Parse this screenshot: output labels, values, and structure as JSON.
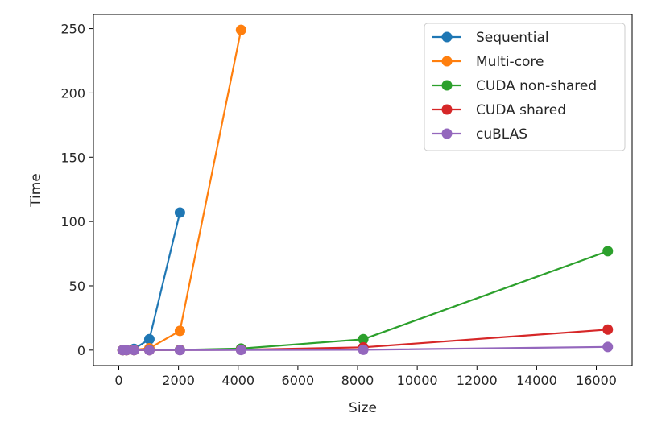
{
  "chart_data": {
    "type": "line",
    "title": "",
    "xlabel": "Size",
    "ylabel": "Time",
    "xlim": [
      -850,
      17200
    ],
    "ylim": [
      -12,
      261
    ],
    "xticks": [
      0,
      2000,
      4000,
      6000,
      8000,
      10000,
      12000,
      14000,
      16000
    ],
    "yticks": [
      0,
      50,
      100,
      150,
      200,
      250
    ],
    "grid": false,
    "legend_position": "top-right",
    "series": [
      {
        "name": "Sequential",
        "color": "#1f77b4",
        "x": [
          128,
          256,
          512,
          1024,
          2048
        ],
        "y": [
          0.0,
          0.1,
          1.0,
          8.5,
          107
        ]
      },
      {
        "name": "Multi-core",
        "color": "#ff7f0e",
        "x": [
          128,
          256,
          512,
          1024,
          2048,
          4096
        ],
        "y": [
          0.0,
          0.0,
          0.2,
          1.5,
          15,
          249
        ]
      },
      {
        "name": "CUDA non-shared",
        "color": "#2ca02c",
        "x": [
          128,
          256,
          512,
          1024,
          2048,
          4096,
          8192,
          16384
        ],
        "y": [
          0.0,
          0.0,
          0.0,
          0.1,
          0.2,
          1.2,
          8.5,
          77
        ]
      },
      {
        "name": "CUDA shared",
        "color": "#d62728",
        "x": [
          128,
          256,
          512,
          1024,
          2048,
          4096,
          8192,
          16384
        ],
        "y": [
          0.0,
          0.0,
          0.0,
          0.0,
          0.1,
          0.3,
          2.2,
          16
        ]
      },
      {
        "name": "cuBLAS",
        "color": "#9467bd",
        "x": [
          128,
          256,
          512,
          1024,
          2048,
          4096,
          8192,
          16384
        ],
        "y": [
          0.0,
          0.0,
          0.0,
          0.0,
          0.0,
          0.1,
          0.3,
          2.5
        ]
      }
    ]
  }
}
